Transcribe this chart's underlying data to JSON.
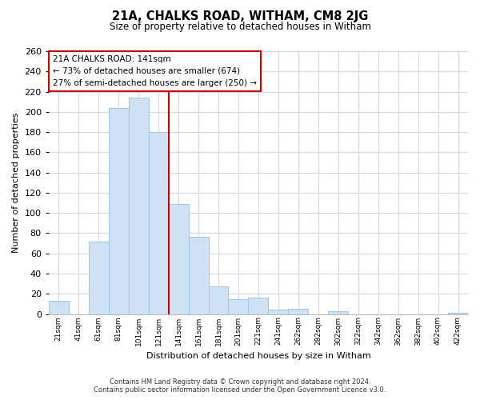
{
  "title": "21A, CHALKS ROAD, WITHAM, CM8 2JG",
  "subtitle": "Size of property relative to detached houses in Witham",
  "xlabel": "Distribution of detached houses by size in Witham",
  "ylabel": "Number of detached properties",
  "bar_labels": [
    "21sqm",
    "41sqm",
    "61sqm",
    "81sqm",
    "101sqm",
    "121sqm",
    "141sqm",
    "161sqm",
    "181sqm",
    "201sqm",
    "221sqm",
    "241sqm",
    "262sqm",
    "282sqm",
    "302sqm",
    "322sqm",
    "342sqm",
    "362sqm",
    "382sqm",
    "402sqm",
    "422sqm"
  ],
  "bar_values": [
    13,
    0,
    72,
    204,
    214,
    180,
    109,
    76,
    27,
    15,
    16,
    4,
    5,
    0,
    3,
    0,
    0,
    0,
    0,
    0,
    1
  ],
  "bar_color": "#cfe2f3",
  "bar_edge_color": "#9fc5e8",
  "highlight_line_index": 6,
  "highlight_line_color": "#cc0000",
  "annotation_title": "21A CHALKS ROAD: 141sqm",
  "annotation_line1": "← 73% of detached houses are smaller (674)",
  "annotation_line2": "27% of semi-detached houses are larger (250) →",
  "annotation_box_color": "#ffffff",
  "annotation_box_edge_color": "#cc0000",
  "footnote1": "Contains HM Land Registry data © Crown copyright and database right 2024.",
  "footnote2": "Contains public sector information licensed under the Open Government Licence v3.0.",
  "ylim": [
    0,
    260
  ],
  "yticks": [
    0,
    20,
    40,
    60,
    80,
    100,
    120,
    140,
    160,
    180,
    200,
    220,
    240,
    260
  ],
  "background_color": "#ffffff",
  "grid_color": "#d0d8e8"
}
